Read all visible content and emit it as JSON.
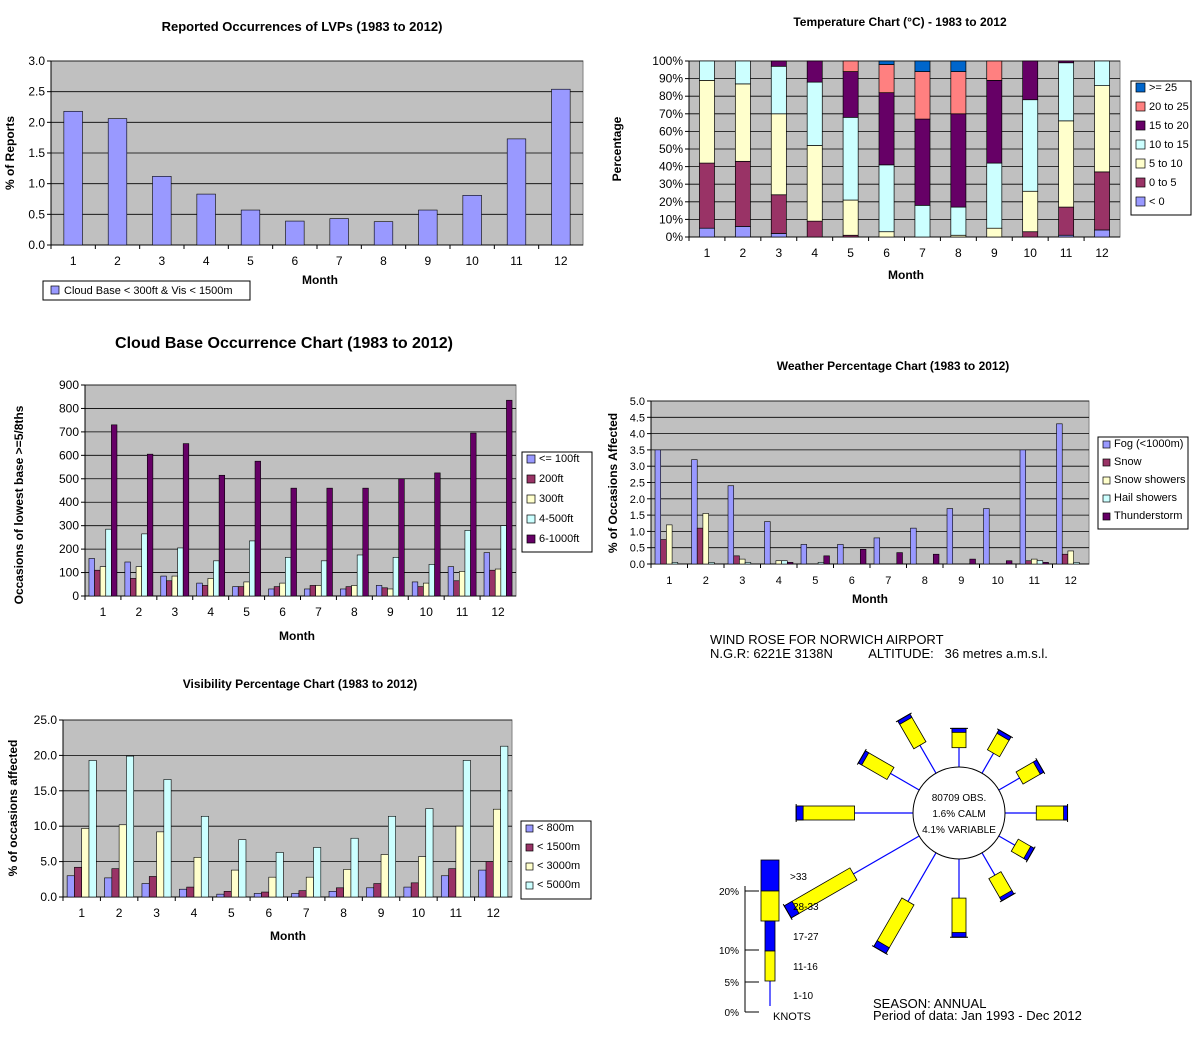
{
  "charts": [
    {
      "type": "bar",
      "title": "Reported Occurrences of LVPs (1983 to 2012)",
      "xlabel": "Month",
      "ylabel": "% of Reports",
      "categories": [
        "1",
        "2",
        "3",
        "4",
        "5",
        "6",
        "7",
        "8",
        "9",
        "10",
        "11",
        "12"
      ],
      "ylim": [
        0,
        3
      ],
      "yticks": [
        "0.0",
        "0.5",
        "1.0",
        "1.5",
        "2.0",
        "2.5",
        "3.0"
      ],
      "legend_position": "bottom-left",
      "series": [
        {
          "name": "Cloud Base < 300ft & Vis < 1500m",
          "color": "#9999ff",
          "values": [
            2.18,
            2.06,
            1.12,
            0.83,
            0.57,
            0.39,
            0.43,
            0.38,
            0.57,
            0.81,
            1.73,
            2.54
          ]
        }
      ]
    },
    {
      "type": "stacked-bar",
      "title": "Temperature Chart (°C) - 1983 to 2012",
      "xlabel": "Month",
      "ylabel": "Percentage",
      "categories": [
        "1",
        "2",
        "3",
        "4",
        "5",
        "6",
        "7",
        "8",
        "9",
        "10",
        "11",
        "12"
      ],
      "ylim": [
        0,
        100
      ],
      "yticks": [
        "0%",
        "10%",
        "20%",
        "30%",
        "40%",
        "50%",
        "60%",
        "70%",
        "80%",
        "90%",
        "100%"
      ],
      "legend_position": "right",
      "series": [
        {
          "name": "< 0",
          "color": "#9999ff",
          "values": [
            5,
            6,
            2,
            0,
            0,
            0,
            0,
            0,
            0,
            0,
            1,
            4
          ]
        },
        {
          "name": "0 to 5",
          "color": "#993366",
          "values": [
            37,
            37,
            22,
            9,
            1,
            0,
            0,
            0,
            0,
            3,
            16,
            33
          ]
        },
        {
          "name": "5 to 10",
          "color": "#ffffcc",
          "values": [
            47,
            44,
            46,
            43,
            20,
            3,
            0,
            1,
            5,
            23,
            49,
            49
          ]
        },
        {
          "name": "10 to 15",
          "color": "#ccffff",
          "values": [
            11,
            13,
            27,
            36,
            47,
            38,
            18,
            16,
            37,
            52,
            33,
            14
          ]
        },
        {
          "name": "15 to 20",
          "color": "#660066",
          "values": [
            0,
            0,
            3,
            12,
            26,
            41,
            49,
            53,
            47,
            22,
            1,
            0
          ]
        },
        {
          "name": "20 to 25",
          "color": "#ff8080",
          "values": [
            0,
            0,
            0,
            0,
            6,
            16,
            27,
            24,
            11,
            0,
            0,
            0
          ]
        },
        {
          "name": ">= 25",
          "color": "#0066cc",
          "values": [
            0,
            0,
            0,
            0,
            0,
            2,
            6,
            6,
            0,
            0,
            0,
            0
          ]
        }
      ]
    },
    {
      "type": "bar",
      "title": "Cloud Base Occurrence Chart (1983 to 2012)",
      "xlabel": "Month",
      "ylabel": "Occasions of lowest base >=5/8ths",
      "categories": [
        "1",
        "2",
        "3",
        "4",
        "5",
        "6",
        "7",
        "8",
        "9",
        "10",
        "11",
        "12"
      ],
      "ylim": [
        0,
        900
      ],
      "yticks": [
        "0",
        "100",
        "200",
        "300",
        "400",
        "500",
        "600",
        "700",
        "800",
        "900"
      ],
      "legend_position": "right",
      "series": [
        {
          "name": "<= 100ft",
          "color": "#9999ff",
          "values": [
            160,
            145,
            85,
            55,
            40,
            30,
            30,
            30,
            45,
            60,
            125,
            185
          ]
        },
        {
          "name": "200ft",
          "color": "#993366",
          "values": [
            110,
            75,
            65,
            45,
            40,
            40,
            45,
            40,
            35,
            40,
            65,
            110
          ]
        },
        {
          "name": "300ft",
          "color": "#ffffcc",
          "values": [
            125,
            125,
            85,
            75,
            60,
            55,
            45,
            45,
            30,
            55,
            105,
            115
          ]
        },
        {
          "name": "4-500ft",
          "color": "#ccffff",
          "values": [
            285,
            265,
            205,
            150,
            235,
            165,
            150,
            175,
            165,
            135,
            280,
            300
          ]
        },
        {
          "name": "6-1000ft",
          "color": "#660066",
          "values": [
            730,
            605,
            650,
            515,
            575,
            460,
            460,
            460,
            500,
            525,
            695,
            835
          ]
        }
      ]
    },
    {
      "type": "bar",
      "title": "Weather Percentage Chart (1983 to 2012)",
      "xlabel": "Month",
      "ylabel": "% of Occasions Affected",
      "categories": [
        "1",
        "2",
        "3",
        "4",
        "5",
        "6",
        "7",
        "8",
        "9",
        "10",
        "11",
        "12"
      ],
      "ylim": [
        0,
        5
      ],
      "yticks": [
        "0.0",
        "0.5",
        "1.0",
        "1.5",
        "2.0",
        "2.5",
        "3.0",
        "3.5",
        "4.0",
        "4.5",
        "5.0"
      ],
      "legend_position": "right",
      "series": [
        {
          "name": "Fog (<1000m)",
          "color": "#9999ff",
          "values": [
            3.5,
            3.2,
            2.4,
            1.3,
            0.6,
            0.6,
            0.8,
            1.1,
            1.7,
            1.7,
            3.5,
            4.3
          ]
        },
        {
          "name": "Snow",
          "color": "#993366",
          "values": [
            0.75,
            1.1,
            0.25,
            0.0,
            0.0,
            0.0,
            0.0,
            0.0,
            0.0,
            0.0,
            0.1,
            0.3
          ]
        },
        {
          "name": "Snow showers",
          "color": "#ffffcc",
          "values": [
            1.2,
            1.55,
            0.15,
            0.1,
            0.0,
            0.0,
            0.0,
            0.0,
            0.0,
            0.0,
            0.15,
            0.4
          ]
        },
        {
          "name": "Hail showers",
          "color": "#ccffff",
          "values": [
            0.05,
            0.05,
            0.05,
            0.1,
            0.05,
            0.0,
            0.0,
            0.0,
            0.0,
            0.0,
            0.1,
            0.05
          ]
        },
        {
          "name": "Thunderstorm",
          "color": "#660066",
          "values": [
            0.0,
            0.0,
            0.0,
            0.05,
            0.25,
            0.45,
            0.35,
            0.3,
            0.15,
            0.1,
            0.05,
            0.0
          ]
        }
      ]
    },
    {
      "type": "bar",
      "title": "Visibility Percentage Chart (1983 to 2012)",
      "xlabel": "Month",
      "ylabel": "% of occasions affected",
      "categories": [
        "1",
        "2",
        "3",
        "4",
        "5",
        "6",
        "7",
        "8",
        "9",
        "10",
        "11",
        "12"
      ],
      "ylim": [
        0,
        25
      ],
      "yticks": [
        "0.0",
        "5.0",
        "10.0",
        "15.0",
        "20.0",
        "25.0"
      ],
      "legend_position": "right",
      "series": [
        {
          "name": "< 800m",
          "color": "#9999ff",
          "values": [
            3.0,
            2.7,
            1.9,
            1.1,
            0.4,
            0.5,
            0.5,
            0.8,
            1.3,
            1.4,
            3.0,
            3.8
          ]
        },
        {
          "name": "< 1500m",
          "color": "#993366",
          "values": [
            4.2,
            4.0,
            2.9,
            1.4,
            0.8,
            0.7,
            0.9,
            1.3,
            1.9,
            2.0,
            4.0,
            5.0
          ]
        },
        {
          "name": "< 3000m",
          "color": "#ffffcc",
          "values": [
            9.7,
            10.2,
            9.2,
            5.6,
            3.8,
            2.8,
            2.8,
            3.9,
            6.0,
            5.7,
            10.0,
            12.4
          ]
        },
        {
          "name": "< 5000m",
          "color": "#ccffff",
          "values": [
            19.3,
            19.9,
            16.6,
            11.4,
            8.1,
            6.3,
            7.0,
            8.3,
            11.4,
            12.5,
            19.3,
            21.3
          ]
        }
      ]
    }
  ],
  "wind_rose": {
    "header_line1": "WIND ROSE FOR NORWICH AIRPORT",
    "header_line2_left": "N.G.R: 6221E 3138N",
    "header_line2_right": "ALTITUDE:   36 metres a.m.s.l.",
    "center_obs": "80709 OBS.",
    "center_calm": "1.6% CALM",
    "center_variable": "4.1% VARIABLE",
    "scale_ticks": [
      "20%",
      "10%",
      "5%",
      "0%"
    ],
    "speed_classes": [
      ">33",
      "28-33",
      "17-27",
      "11-16",
      "1-10"
    ],
    "units": "KNOTS",
    "season": "SEASON:  ANNUAL",
    "period": "Period of data:  Jan 1993 - Dec 2012",
    "colors": {
      "line": "#0000ff",
      "bar_a": "#ffff00",
      "bar_b": "#0000ff"
    },
    "directions": [
      {
        "bearing": 0,
        "percent": 4.2
      },
      {
        "bearing": 30,
        "percent": 5.0
      },
      {
        "bearing": 60,
        "percent": 5.2
      },
      {
        "bearing": 90,
        "percent": 6.8
      },
      {
        "bearing": 120,
        "percent": 4.0
      },
      {
        "bearing": 150,
        "percent": 5.6
      },
      {
        "bearing": 180,
        "percent": 8.5
      },
      {
        "bearing": 210,
        "percent": 12.2
      },
      {
        "bearing": 240,
        "percent": 16.5
      },
      {
        "bearing": 270,
        "percent": 12.7
      },
      {
        "bearing": 300,
        "percent": 7.2
      },
      {
        "bearing": 330,
        "percent": 7.0
      }
    ]
  }
}
